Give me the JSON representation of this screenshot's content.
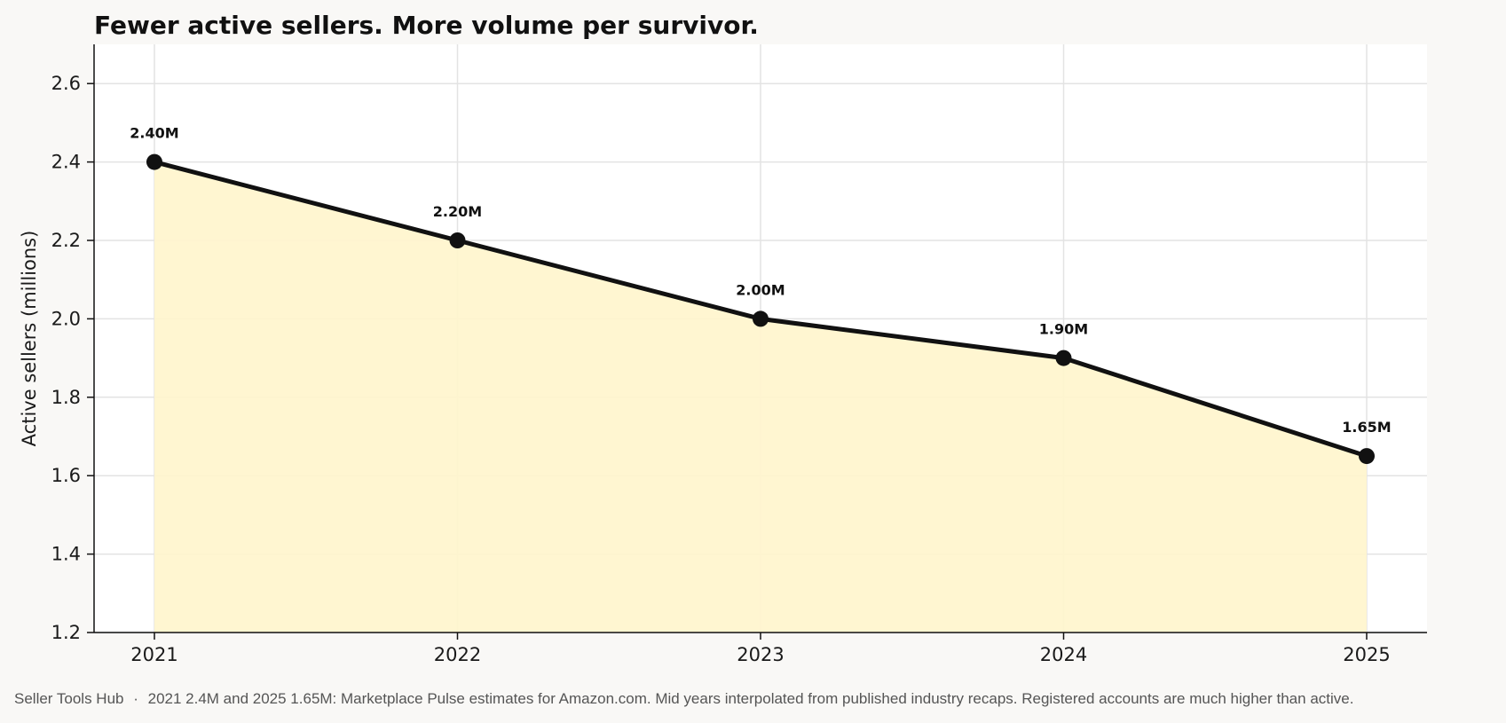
{
  "chart_data": {
    "type": "area",
    "title": "Fewer active sellers. More volume per survivor.",
    "xlabel": "",
    "ylabel": "Active sellers (millions)",
    "categories": [
      "2021",
      "2022",
      "2023",
      "2024",
      "2025"
    ],
    "values": [
      2.4,
      2.2,
      2.0,
      1.9,
      1.65
    ],
    "data_labels": [
      "2.40M",
      "2.20M",
      "2.00M",
      "1.90M",
      "1.65M"
    ],
    "ylim": [
      1.2,
      2.7
    ],
    "yticks": [
      "1.2",
      "1.4",
      "1.6",
      "1.8",
      "2.0",
      "2.2",
      "2.4",
      "2.6"
    ],
    "grid": true,
    "legend": "none",
    "colors": {
      "line": "#111111",
      "fill": "#fff5cc",
      "grid": "#e3e3e3",
      "background": "#f9f8f6",
      "plot_background": "#ffffff"
    }
  },
  "footer": {
    "source": "Seller Tools Hub",
    "separator": "·",
    "note": "2021 2.4M and 2025 1.65M: Marketplace Pulse estimates for Amazon.com. Mid years interpolated from published industry recaps. Registered accounts are much higher than active."
  }
}
